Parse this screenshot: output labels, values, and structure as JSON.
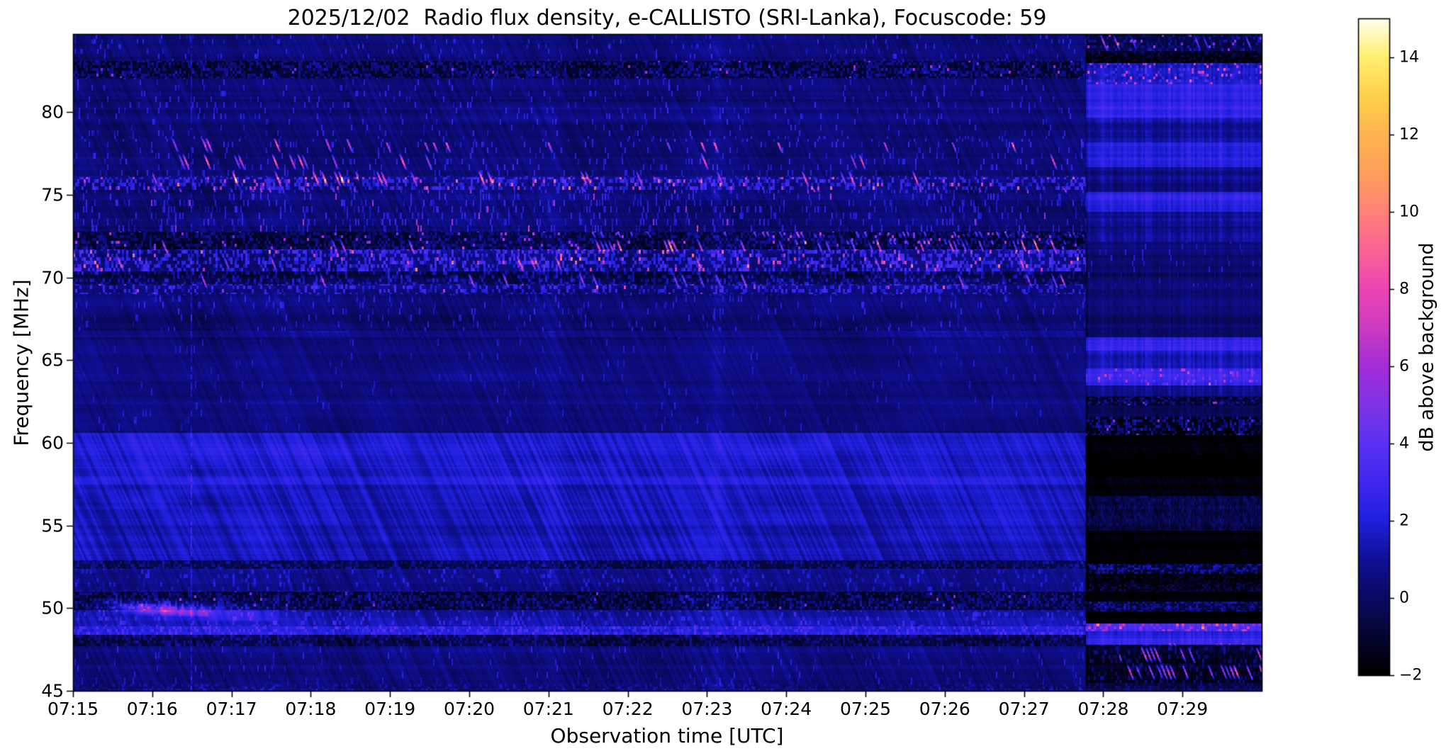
{
  "chart_data": {
    "type": "heatmap",
    "subtype": "radio-spectrogram",
    "title": "2025/12/02  Radio flux density, e-CALLISTO (SRI-Lanka), Focuscode: 59",
    "xlabel": "Observation time [UTC]",
    "ylabel": "Frequency [MHz]",
    "x_ticks": [
      "07:15",
      "07:16",
      "07:17",
      "07:18",
      "07:19",
      "07:20",
      "07:21",
      "07:22",
      "07:23",
      "07:24",
      "07:25",
      "07:26",
      "07:27",
      "07:28",
      "07:29"
    ],
    "x_range_minutes": [
      0,
      15
    ],
    "y_ticks": [
      80,
      75,
      70,
      65,
      60,
      55,
      50,
      45
    ],
    "ylim_mhz": [
      45.0,
      84.72
    ],
    "grid": false,
    "colorbar": {
      "label": "dB above background",
      "ticks": [
        14,
        12,
        10,
        8,
        6,
        4,
        2,
        0,
        -2
      ],
      "range": [
        -2,
        15
      ]
    },
    "colormap_stops": [
      [
        -2,
        "#000000"
      ],
      [
        0,
        "#0a0a64"
      ],
      [
        1,
        "#101096"
      ],
      [
        2,
        "#2020de"
      ],
      [
        3,
        "#4028ee"
      ],
      [
        4,
        "#5a32f4"
      ],
      [
        5,
        "#8232e6"
      ],
      [
        6,
        "#a42cd8"
      ],
      [
        7,
        "#cc3cc0"
      ],
      [
        8,
        "#ee44b4"
      ],
      [
        9,
        "#fa6496"
      ],
      [
        10,
        "#ff8278"
      ],
      [
        11,
        "#ffa05a"
      ],
      [
        12,
        "#ffb450"
      ],
      [
        13,
        "#ffd24b"
      ],
      [
        14,
        "#fff06e"
      ],
      [
        15,
        "#fffff0"
      ]
    ],
    "noise_seed": 7,
    "segment_split_minute": 12.78,
    "segments": [
      {
        "name": "main",
        "t0": 0,
        "t1": 12.78,
        "bands": [
          {
            "f": [
              84.72,
              83.1
            ],
            "base": 0.5,
            "spk": [
              {
                "cw": 2,
                "ch": 7,
                "d": 0.05,
                "a": 2.3
              }
            ]
          },
          {
            "f": [
              83.1,
              82.1
            ],
            "base": -0.9,
            "spk": [
              {
                "cw": 3,
                "ch": 4,
                "d": 0.45,
                "a": 2.4,
                "hd": 0.012,
                "ha": 6.5
              }
            ]
          },
          {
            "f": [
              82.1,
              78.4
            ],
            "base": 0.4,
            "spk": [
              {
                "cw": 2,
                "ch": 8,
                "d": 0.05,
                "a": 2.4
              }
            ]
          },
          {
            "f": [
              78.4,
              76.1
            ],
            "base": 0.35,
            "spk": [
              {
                "cw": 2,
                "ch": 8,
                "d": 0.06,
                "a": 2.6
              }
            ]
          },
          {
            "f": [
              76.1,
              75.3
            ],
            "base": 0.5,
            "spk": [
              {
                "cw": 3,
                "ch": 5,
                "d": 0.38,
                "a": 3.0,
                "hd": 0.05,
                "ha": 7.5
              }
            ]
          },
          {
            "f": [
              75.3,
              72.8
            ],
            "base": 0.3,
            "spk": [
              {
                "cw": 2,
                "ch": 9,
                "d": 0.11,
                "a": 2.6,
                "hd": 0.006,
                "ha": 7.0
              }
            ]
          },
          {
            "f": [
              72.8,
              71.7
            ],
            "base": -1.1,
            "spk": [
              {
                "cw": 3,
                "ch": 4,
                "d": 0.42,
                "a": 2.2,
                "hd": 0.03,
                "ha": 7.5
              }
            ]
          },
          {
            "f": [
              71.7,
              70.4
            ],
            "base": 0.4,
            "spk": [
              {
                "cw": 3,
                "ch": 5,
                "d": 0.4,
                "a": 3.2,
                "hd": 0.035,
                "ha": 8.0
              }
            ]
          },
          {
            "f": [
              70.4,
              69.6
            ],
            "base": -0.5,
            "spk": [
              {
                "cw": 3,
                "ch": 5,
                "d": 0.3,
                "a": 2.4
              }
            ]
          },
          {
            "f": [
              69.6,
              69.0
            ],
            "base": 0.3,
            "spk": [
              {
                "cw": 3,
                "ch": 5,
                "d": 0.32,
                "a": 2.8,
                "hd": 0.01,
                "ha": 6.5
              }
            ]
          },
          {
            "f": [
              69.0,
              66.8
            ],
            "base": 0.3,
            "spk": [
              {
                "cw": 2,
                "ch": 9,
                "d": 0.05,
                "a": 2.2
              }
            ]
          },
          {
            "f": [
              66.8,
              66.4
            ],
            "base": 0.9,
            "spk": []
          },
          {
            "f": [
              66.4,
              60.6
            ],
            "base": 0.5,
            "spk": [
              {
                "cw": 2,
                "ch": 10,
                "d": 0.02,
                "a": 1.6
              }
            ]
          },
          {
            "f": [
              60.6,
              57.5
            ],
            "base": 2.0,
            "spk": []
          },
          {
            "f": [
              57.5,
              52.9
            ],
            "base": 1.5,
            "spk": []
          },
          {
            "f": [
              52.9,
              52.4
            ],
            "base": -0.6,
            "spk": [
              {
                "cw": 3,
                "ch": 4,
                "d": 0.4,
                "a": 1.8
              }
            ]
          },
          {
            "f": [
              52.4,
              51.0
            ],
            "base": 0.9,
            "spk": [
              {
                "cw": 3,
                "ch": 6,
                "d": 0.1,
                "a": 1.5
              }
            ]
          },
          {
            "f": [
              51.0,
              49.9
            ],
            "base": -1.0,
            "spk": [
              {
                "cw": 3,
                "ch": 4,
                "d": 0.45,
                "a": 2.2,
                "hd": 0.008,
                "ha": 5.5
              }
            ]
          },
          {
            "f": [
              49.9,
              48.9
            ],
            "base": 1.2,
            "spk": [
              {
                "cw": 3,
                "ch": 6,
                "d": 0.12,
                "a": 1.8
              }
            ]
          },
          {
            "f": [
              48.9,
              48.4
            ],
            "base": 2.1,
            "spk": [
              {
                "cw": 3,
                "ch": 4,
                "d": 0.3,
                "a": 1.8
              }
            ]
          },
          {
            "f": [
              48.4,
              47.7
            ],
            "base": -0.8,
            "spk": [
              {
                "cw": 3,
                "ch": 4,
                "d": 0.35,
                "a": 1.8
              }
            ]
          },
          {
            "f": [
              47.7,
              45.4
            ],
            "base": 0.5,
            "spk": [
              {
                "cw": 2,
                "ch": 9,
                "d": 0.04,
                "a": 1.8
              }
            ]
          },
          {
            "f": [
              45.4,
              45.0
            ],
            "base": 0.1,
            "spk": [
              {
                "cw": 3,
                "ch": 3,
                "d": 0.3,
                "a": 1.4
              }
            ]
          }
        ]
      },
      {
        "name": "tail",
        "t0": 12.78,
        "t1": 15,
        "bands": [
          {
            "f": [
              84.72,
              83.7
            ],
            "base": -0.5,
            "spk": [
              {
                "cw": 3,
                "ch": 4,
                "d": 0.25,
                "a": 2.0,
                "hd": 0.05,
                "ha": 7.0
              }
            ]
          },
          {
            "f": [
              83.7,
              83.0
            ],
            "base": -1.5,
            "spk": [
              {
                "cw": 3,
                "ch": 3,
                "d": 0.3,
                "a": 1.5
              }
            ]
          },
          {
            "f": [
              83.0,
              81.7
            ],
            "base": 1.8,
            "spk": [
              {
                "cw": 3,
                "ch": 4,
                "d": 0.2,
                "a": 2.0,
                "hd": 0.06,
                "ha": 6.5
              }
            ]
          },
          {
            "f": [
              81.7,
              79.7
            ],
            "base": 2.6,
            "spk": []
          },
          {
            "f": [
              79.7,
              78.2
            ],
            "base": 1.2,
            "spk": []
          },
          {
            "f": [
              78.2,
              76.7
            ],
            "base": 2.2,
            "spk": []
          },
          {
            "f": [
              76.7,
              75.2
            ],
            "base": 0.8,
            "spk": []
          },
          {
            "f": [
              75.2,
              74.0
            ],
            "base": 2.4,
            "spk": []
          },
          {
            "f": [
              74.0,
              72.2
            ],
            "base": 0.9,
            "spk": []
          },
          {
            "f": [
              72.2,
              69.5
            ],
            "base": 0.25,
            "spk": [
              {
                "cw": 2,
                "ch": 8,
                "d": 0.04,
                "a": 1.8
              }
            ]
          },
          {
            "f": [
              69.5,
              66.4
            ],
            "base": 0.2,
            "spk": []
          },
          {
            "f": [
              66.4,
              65.6
            ],
            "base": 2.7,
            "spk": []
          },
          {
            "f": [
              65.6,
              64.5
            ],
            "base": 1.5,
            "spk": []
          },
          {
            "f": [
              64.5,
              63.5
            ],
            "base": 2.8,
            "spk": [
              {
                "cw": 3,
                "ch": 4,
                "d": 0.1,
                "a": 2.2,
                "hd": 0.03,
                "ha": 5.0
              }
            ]
          },
          {
            "f": [
              63.5,
              62.8
            ],
            "base": 0.9,
            "spk": []
          },
          {
            "f": [
              62.8,
              62.3
            ],
            "base": -1.2,
            "spk": [
              {
                "cw": 3,
                "ch": 3,
                "d": 0.35,
                "a": 2.2,
                "hd": 0.03,
                "ha": 6.0
              }
            ]
          },
          {
            "f": [
              62.3,
              61.6
            ],
            "base": -0.3,
            "spk": []
          },
          {
            "f": [
              61.6,
              60.5
            ],
            "base": -1.4,
            "spk": [
              {
                "cw": 3,
                "ch": 4,
                "d": 0.4,
                "a": 3.0,
                "hd": 0.02,
                "ha": 6.0
              }
            ]
          },
          {
            "f": [
              60.5,
              56.8
            ],
            "base": -1.85,
            "spk": []
          },
          {
            "f": [
              56.8,
              54.7
            ],
            "base": -0.8,
            "spk": [
              {
                "cw": 2,
                "ch": 5,
                "d": 0.3,
                "a": 1.1
              }
            ]
          },
          {
            "f": [
              54.7,
              52.7
            ],
            "base": -1.85,
            "spk": []
          },
          {
            "f": [
              52.7,
              52.1
            ],
            "base": -1.0,
            "spk": [
              {
                "cw": 3,
                "ch": 3,
                "d": 0.5,
                "a": 2.6
              }
            ]
          },
          {
            "f": [
              52.1,
              51.5
            ],
            "base": -1.6,
            "spk": [
              {
                "cw": 3,
                "ch": 3,
                "d": 0.3,
                "a": 1.2
              }
            ]
          },
          {
            "f": [
              51.5,
              51.0
            ],
            "base": -1.1,
            "spk": [
              {
                "cw": 3,
                "ch": 3,
                "d": 0.4,
                "a": 1.7
              }
            ]
          },
          {
            "f": [
              51.0,
              50.4
            ],
            "base": -1.8,
            "spk": []
          },
          {
            "f": [
              50.4,
              49.8
            ],
            "base": -1.0,
            "spk": [
              {
                "cw": 3,
                "ch": 3,
                "d": 0.5,
                "a": 2.4
              }
            ]
          },
          {
            "f": [
              49.8,
              49.1
            ],
            "base": -1.9,
            "spk": []
          },
          {
            "f": [
              49.1,
              48.6
            ],
            "base": 3.4,
            "spk": [
              {
                "cw": 4,
                "ch": 4,
                "d": 0.3,
                "a": 3.0,
                "hd": 0.1,
                "ha": 4.5
              }
            ]
          },
          {
            "f": [
              48.6,
              48.2
            ],
            "base": 2.0,
            "spk": []
          },
          {
            "f": [
              48.2,
              47.8
            ],
            "base": 2.9,
            "spk": []
          },
          {
            "f": [
              47.8,
              45.5
            ],
            "base": -1.2,
            "spk": [
              {
                "cw": 3,
                "ch": 6,
                "d": 0.25,
                "a": 2.2
              }
            ]
          },
          {
            "f": [
              45.5,
              45.0
            ],
            "base": -0.8,
            "spk": [
              {
                "cw": 3,
                "ch": 4,
                "d": 0.3,
                "a": 1.5
              }
            ]
          }
        ]
      }
    ],
    "features": [
      {
        "type": "drift_streak",
        "t": [
          0.25,
          2.6
        ],
        "f": [
          50.6,
          49.2
        ],
        "amp": 2.8
      },
      {
        "type": "drift_streak",
        "t": [
          0.5,
          1.7
        ],
        "f": [
          50.3,
          49.5
        ],
        "amp": 4.5
      },
      {
        "type": "dotted_vline",
        "t": 1.49,
        "amp": 1.7
      },
      {
        "type": "soft_vline",
        "t": 6.05,
        "amp": 0.35,
        "w": 14
      },
      {
        "type": "soft_vline",
        "t": 8.12,
        "amp": 0.45,
        "w": 9
      },
      {
        "type": "soft_vline",
        "t": 12.79,
        "amp": -1.2,
        "w": 2
      },
      {
        "type": "diag_dashes",
        "t": [
          1.0,
          3.6
        ],
        "f": [
          78.4,
          75.2
        ],
        "d": 0.17,
        "amp": 9.0
      },
      {
        "type": "diag_dashes",
        "t": [
          3.6,
          12.78
        ],
        "f": [
          78.2,
          75.2
        ],
        "d": 0.06,
        "amp": 8.2
      },
      {
        "type": "diag_dashes",
        "t": [
          6.5,
          12.78
        ],
        "f": [
          72.8,
          71.6
        ],
        "d": 0.16,
        "amp": 7.6
      },
      {
        "type": "diag_dashes",
        "t": [
          0.15,
          12.78
        ],
        "f": [
          72.3,
          69.4
        ],
        "d": 0.05,
        "amp": 6.8
      },
      {
        "type": "diag_dashes",
        "t": [
          9.0,
          12.78
        ],
        "f": [
          72.6,
          72.0
        ],
        "d": 0.3,
        "amp": 7.2
      },
      {
        "type": "diag_dashes",
        "t": [
          13.2,
          15.0
        ],
        "f": [
          47.9,
          45.6
        ],
        "d": 0.3,
        "amp": 8.6
      },
      {
        "type": "diag_dashes",
        "t": [
          12.78,
          15.0
        ],
        "f": [
          84.72,
          83.6
        ],
        "d": 0.14,
        "amp": 7.0
      }
    ]
  }
}
